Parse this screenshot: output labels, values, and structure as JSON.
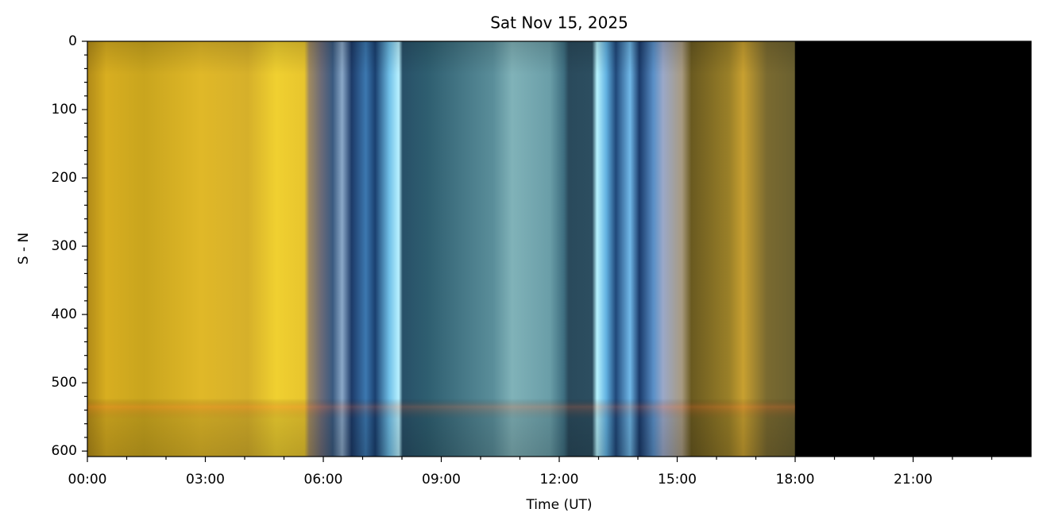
{
  "chart_data": {
    "type": "image",
    "title": "Sat Nov 15, 2025",
    "x_label": "Time (UT)",
    "y_label": "S - N",
    "xlim": [
      0,
      24
    ],
    "xticks": [
      {
        "value": 0,
        "label": "00:00"
      },
      {
        "value": 3,
        "label": "03:00"
      },
      {
        "value": 6,
        "label": "06:00"
      },
      {
        "value": 9,
        "label": "09:00"
      },
      {
        "value": 12,
        "label": "12:00"
      },
      {
        "value": 15,
        "label": "15:00"
      },
      {
        "value": 18,
        "label": "18:00"
      },
      {
        "value": 21,
        "label": "21:00"
      }
    ],
    "xminorticks": [
      1,
      2,
      4,
      5,
      7,
      8,
      10,
      11,
      13,
      14,
      16,
      17,
      19,
      20,
      22,
      23
    ],
    "ylim": [
      0,
      608
    ],
    "y_inverted": true,
    "yticks": [
      0,
      100,
      200,
      300,
      400,
      500,
      600
    ],
    "yminorticks": [
      20,
      40,
      60,
      80,
      120,
      140,
      160,
      180,
      220,
      240,
      260,
      280,
      320,
      340,
      360,
      380,
      420,
      440,
      460,
      480,
      520,
      540,
      560,
      580
    ]
  }
}
